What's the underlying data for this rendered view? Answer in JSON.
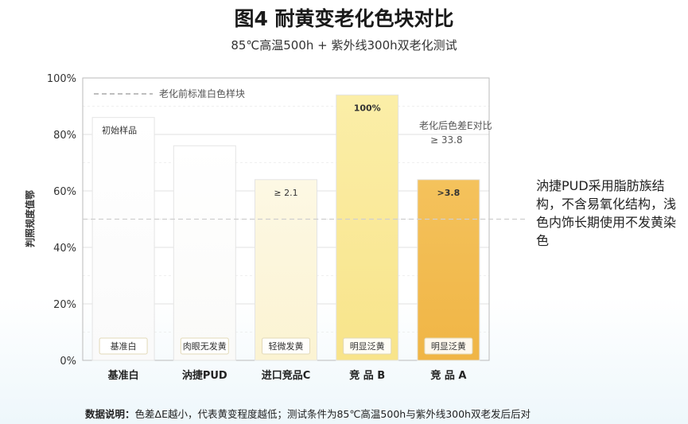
{
  "title": "图4 耐黄变老化色块对比",
  "subtitle": "85℃高温500h + 紫外线300h双老化测试",
  "side_note": "汭捷PUD采用脂肪族结构，不含易氧化结构，浅色内饰长期使用不发黄染色",
  "footer": {
    "label": "数据说明：",
    "text": "色差ΔE越小，代表黄变程度越低；测试条件为85℃高温500h与紫外线300h双老发后后对"
  },
  "chart_data": {
    "type": "bar",
    "ylabel": "判照规度值鄂",
    "ylim": [
      0,
      100
    ],
    "yticks": [
      "0%",
      "20%",
      "40%",
      "60%",
      "80%",
      "100%"
    ],
    "categories": [
      "基准白",
      "汭捷PUD",
      "进口竞品C",
      "竞 品 B",
      "竞 品 A"
    ],
    "values": [
      86,
      76,
      64,
      94,
      64
    ],
    "bar_top_labels": [
      "初始样品",
      "",
      "≥ 2.1",
      "100%",
      ">3.8"
    ],
    "bar_badges": [
      "基准白",
      "肉眼无发黄",
      "轻微发黄",
      "明显泛黄",
      "明显泛黄"
    ],
    "bar_colors_top": [
      "#ffffff",
      "#ffffff",
      "#fdf8e4",
      "#fbeea8",
      "#f4c25c"
    ],
    "bar_colors_bottom": [
      "#fafafa",
      "#fafaf8",
      "#fbf3d2",
      "#f8e48a",
      "#f0b545"
    ],
    "reference_line_label": "老化前标准白色样块",
    "reference_line_value": 50,
    "annotation": {
      "line1": "老化后色差E对比",
      "line2": "≥ 33.8"
    },
    "grid": true
  }
}
